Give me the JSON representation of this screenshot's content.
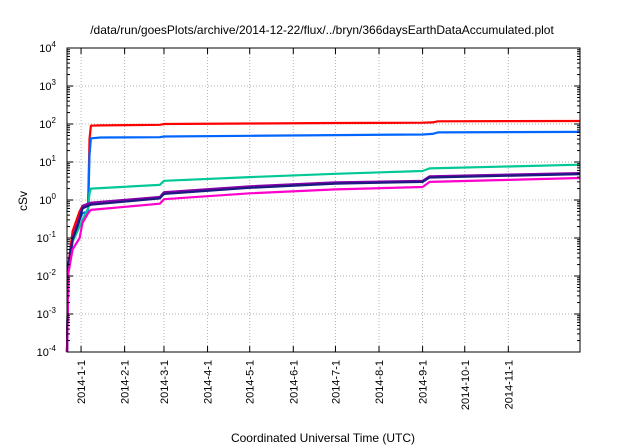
{
  "chart_data": {
    "type": "line",
    "title": "/data/run/goesPlots/archive/2014-12-22/flux/../bryn/366daysEarthDataAccumulated.plot",
    "xlabel": "Coordinated Universal Time (UTC)",
    "ylabel": "cSv",
    "y_scale": "log",
    "ylim": [
      0.0001,
      10000
    ],
    "xlim": [
      "2013-12-22",
      "2014-12-22"
    ],
    "grid": true,
    "legend": "none",
    "x_tick_labels": [
      "2014-1-1",
      "2014-2-1",
      "2014-3-1",
      "2014-4-1",
      "2014-5-1",
      "2014-6-1",
      "2014-7-1",
      "2014-8-1",
      "2014-9-1",
      "2014-10-1",
      "2014-11-1"
    ],
    "y_ticks": [
      {
        "value": 0.0001,
        "base": "10",
        "exp": "-4"
      },
      {
        "value": 0.001,
        "base": "10",
        "exp": "-3"
      },
      {
        "value": 0.01,
        "base": "10",
        "exp": "-2"
      },
      {
        "value": 0.1,
        "base": "10",
        "exp": "-1"
      },
      {
        "value": 1,
        "base": "10",
        "exp": "0"
      },
      {
        "value": 10,
        "base": "10",
        "exp": "1"
      },
      {
        "value": 100,
        "base": "10",
        "exp": "2"
      },
      {
        "value": 1000,
        "base": "10",
        "exp": "3"
      },
      {
        "value": 10000,
        "base": "10",
        "exp": "4"
      }
    ],
    "series": [
      {
        "color": "#ff0000",
        "x": [
          "2013-12-22",
          "2013-12-23",
          "2013-12-26",
          "2013-12-31",
          "2014-01-02",
          "2014-01-06",
          "2014-01-07",
          "2014-01-08",
          "2014-01-15",
          "2014-02-26",
          "2014-03-01",
          "2014-05-01",
          "2014-07-01",
          "2014-09-01",
          "2014-09-08",
          "2014-09-12",
          "2014-12-22"
        ],
        "y": [
          0.0001,
          0.02,
          0.15,
          0.5,
          0.7,
          0.75,
          40,
          90,
          92,
          95,
          100,
          103,
          106,
          108,
          110,
          118,
          120
        ]
      },
      {
        "color": "#0066ff",
        "x": [
          "2013-12-22",
          "2013-12-23",
          "2013-12-26",
          "2013-12-31",
          "2014-01-02",
          "2014-01-06",
          "2014-01-07",
          "2014-01-08",
          "2014-01-15",
          "2014-02-26",
          "2014-03-01",
          "2014-05-01",
          "2014-07-01",
          "2014-09-01",
          "2014-09-08",
          "2014-09-12",
          "2014-12-22"
        ],
        "y": [
          0.0001,
          0.015,
          0.08,
          0.3,
          0.45,
          0.5,
          15,
          42,
          44,
          45,
          47,
          49,
          51,
          53,
          55,
          60,
          62
        ]
      },
      {
        "color": "#00c896",
        "x": [
          "2013-12-22",
          "2013-12-23",
          "2013-12-26",
          "2013-12-31",
          "2014-01-02",
          "2014-01-06",
          "2014-01-07",
          "2014-01-08",
          "2014-02-26",
          "2014-03-01",
          "2014-05-01",
          "2014-07-01",
          "2014-09-01",
          "2014-09-06",
          "2014-12-22"
        ],
        "y": [
          0.0001,
          0.02,
          0.08,
          0.2,
          0.3,
          0.6,
          1.5,
          2.0,
          2.5,
          3.2,
          4.0,
          4.9,
          5.8,
          6.8,
          8.5
        ]
      },
      {
        "color": "#8800aa",
        "x": [
          "2013-12-22",
          "2013-12-23",
          "2013-12-26",
          "2013-12-31",
          "2014-01-02",
          "2014-01-06",
          "2014-01-08",
          "2014-02-26",
          "2014-03-01",
          "2014-05-01",
          "2014-07-01",
          "2014-09-01",
          "2014-09-06",
          "2014-12-22"
        ],
        "y": [
          0.0001,
          0.02,
          0.1,
          0.35,
          0.7,
          0.8,
          0.85,
          1.2,
          1.6,
          2.3,
          2.9,
          3.2,
          4.2,
          5.1
        ]
      },
      {
        "color": "#1a1a80",
        "x": [
          "2013-12-22",
          "2013-12-23",
          "2013-12-26",
          "2013-12-31",
          "2014-01-02",
          "2014-01-06",
          "2014-01-08",
          "2014-02-26",
          "2014-03-01",
          "2014-05-01",
          "2014-07-01",
          "2014-09-01",
          "2014-09-06",
          "2014-12-22"
        ],
        "y": [
          0.0001,
          0.018,
          0.09,
          0.3,
          0.6,
          0.7,
          0.75,
          1.1,
          1.45,
          2.1,
          2.7,
          3.0,
          3.9,
          4.8
        ]
      },
      {
        "color": "#ff00cc",
        "x": [
          "2013-12-22",
          "2013-12-23",
          "2013-12-26",
          "2013-12-31",
          "2014-01-02",
          "2014-01-06",
          "2014-01-08",
          "2014-02-26",
          "2014-03-01",
          "2014-05-01",
          "2014-07-01",
          "2014-09-01",
          "2014-09-06",
          "2014-12-22"
        ],
        "y": [
          0.0001,
          0.012,
          0.05,
          0.1,
          0.25,
          0.45,
          0.55,
          0.8,
          1.05,
          1.5,
          1.9,
          2.2,
          3.0,
          3.8
        ]
      }
    ]
  }
}
